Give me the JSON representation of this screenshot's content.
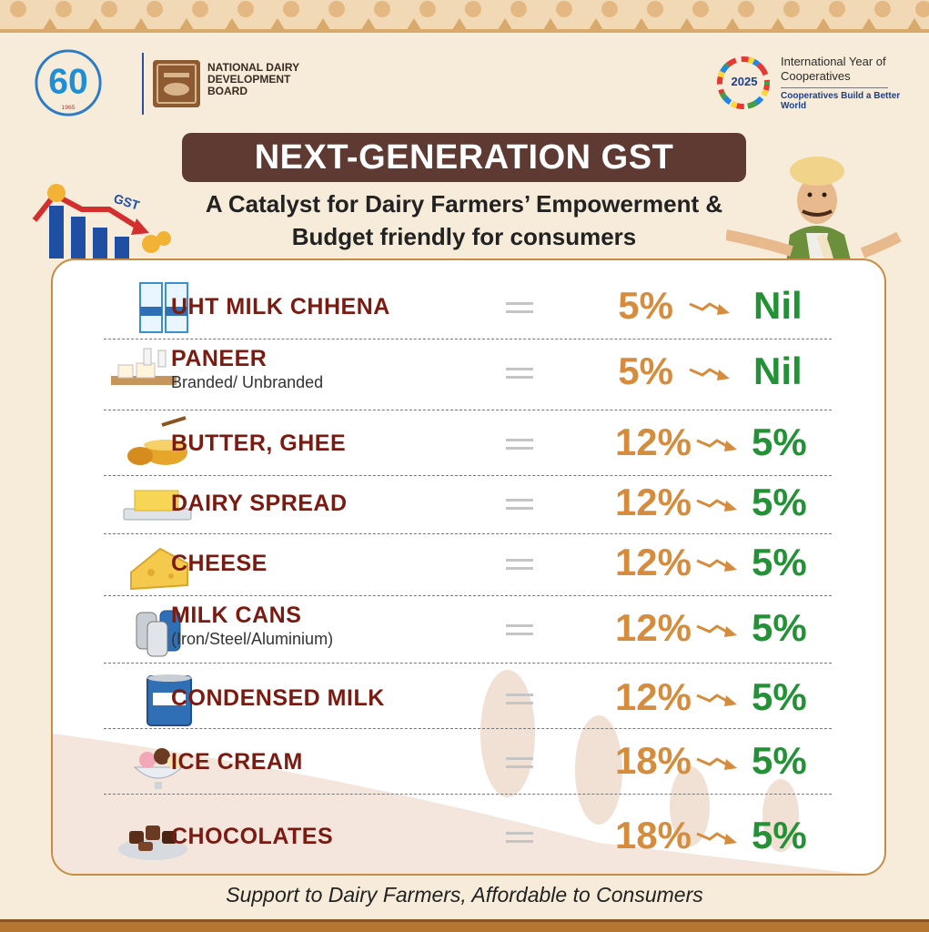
{
  "header": {
    "nddb_logo_small_text": "NATIONAL DAIRY DEVELOPMENT BOARD",
    "nddb_name": "NATIONAL DAIRY DEVELOPMENT BOARD",
    "anniversary_number": "60",
    "iyc_year": "2025",
    "iyc_title": "International Year of Cooperatives",
    "iyc_tagline": "Cooperatives Build a Better World"
  },
  "title": "NEXT-GENERATION GST",
  "subtitle_line1": "A Catalyst for Dairy Farmers’ Empowerment &",
  "subtitle_line2": "Budget friendly for consumers",
  "gst_icon_label": "GST",
  "items": [
    {
      "name": "UHT MILK CHHENA",
      "sub": "",
      "old_rate": "5%",
      "new_rate": "Nil",
      "icon": "milk-carton-icon"
    },
    {
      "name": "PANEER",
      "sub": "Branded/ Unbranded",
      "old_rate": "5%",
      "new_rate": "Nil",
      "icon": "paneer-icon"
    },
    {
      "name": "BUTTER, GHEE",
      "sub": "",
      "old_rate": "12%",
      "new_rate": "5%",
      "icon": "ghee-bowl-icon"
    },
    {
      "name": "DAIRY SPREAD",
      "sub": "",
      "old_rate": "12%",
      "new_rate": "5%",
      "icon": "butter-block-icon"
    },
    {
      "name": "CHEESE",
      "sub": "",
      "old_rate": "12%",
      "new_rate": "5%",
      "icon": "cheese-icon"
    },
    {
      "name": "MILK CANS",
      "sub": "(Iron/Steel/Aluminium)",
      "old_rate": "12%",
      "new_rate": "5%",
      "icon": "milk-can-icon"
    },
    {
      "name": "CONDENSED MILK",
      "sub": "",
      "old_rate": "12%",
      "new_rate": "5%",
      "icon": "condensed-milk-tin-icon"
    },
    {
      "name": "ICE CREAM",
      "sub": "",
      "old_rate": "18%",
      "new_rate": "5%",
      "icon": "ice-cream-icon"
    },
    {
      "name": "CHOCOLATES",
      "sub": "",
      "old_rate": "18%",
      "new_rate": "5%",
      "icon": "chocolates-icon"
    }
  ],
  "footer": "Support to Dairy Farmers, Affordable to Consumers",
  "colors": {
    "title_bg": "#5e3a33",
    "product_name": "#7a1b12",
    "old_rate": "#d58c3d",
    "new_rate": "#239135",
    "card_border": "#c78c44",
    "background": "#f6ecd9"
  }
}
